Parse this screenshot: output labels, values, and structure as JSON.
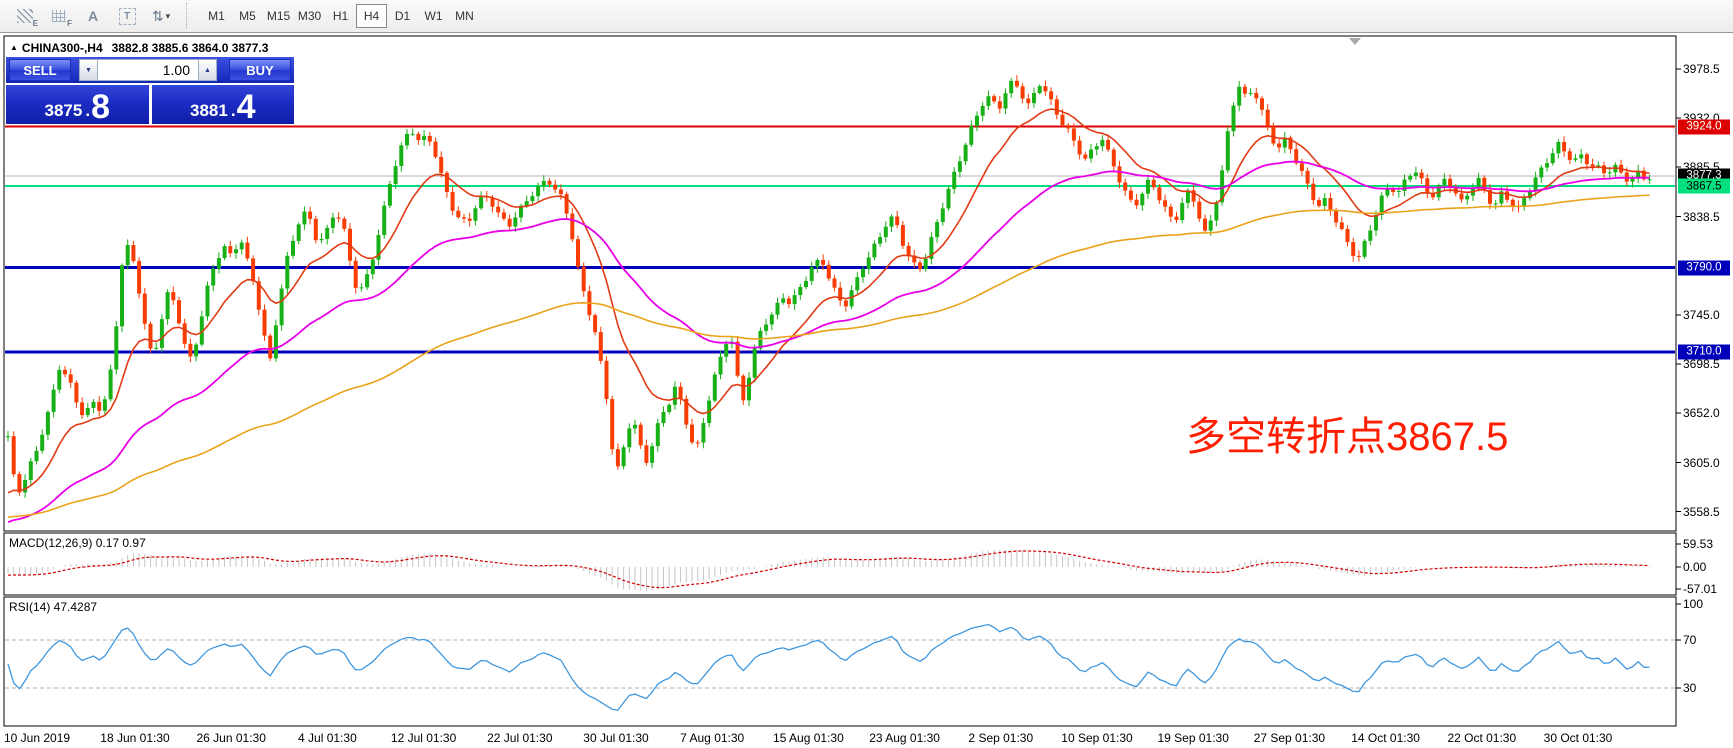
{
  "toolbar": {
    "tools": [
      {
        "name": "equidistant-channel-tool",
        "glyph": "E"
      },
      {
        "name": "fibonacci-tool",
        "glyph": "F"
      },
      {
        "name": "text-tool",
        "glyph": "A"
      },
      {
        "name": "text-label-tool",
        "glyph": "T"
      },
      {
        "name": "arrow-tools",
        "glyph": "⇅"
      }
    ],
    "caret": "▾",
    "timeframes": [
      "M1",
      "M5",
      "M15",
      "M30",
      "H1",
      "H4",
      "D1",
      "W1",
      "MN"
    ],
    "active_timeframe": "H4"
  },
  "glyphs": {
    "marker": "▲",
    "up": "▲",
    "down": "▼"
  },
  "symbol_bar": {
    "symbol": "CHINA300-,H4",
    "ohlc": "3882.8 3885.6 3864.0 3877.3"
  },
  "trade_panel": {
    "sell_label": "SELL",
    "buy_label": "BUY",
    "volume": "1.00",
    "sell_main": "3875",
    "sell_dot": ".",
    "sell_big": "8",
    "buy_main": "3881",
    "buy_dot": ".",
    "buy_big": "4"
  },
  "annotation": {
    "text": "多空转折点3867.5",
    "color": "#ff1e00"
  },
  "chart_data": {
    "type": "candlestick",
    "symbol": "CHINA300-",
    "timeframe": "H4",
    "current_bar": {
      "open": 3882.8,
      "high": 3885.6,
      "low": 3864.0,
      "close": 3877.3
    },
    "price_axis": {
      "min": 3540,
      "max": 4010,
      "ticks": [
        {
          "label": "3978.5",
          "price": 3978.5
        },
        {
          "label": "3932.0",
          "price": 3932.0
        },
        {
          "label": "3885.5",
          "price": 3885.5
        },
        {
          "label": "3838.5",
          "price": 3838.5
        },
        {
          "label": "3745.0",
          "price": 3745.0
        },
        {
          "label": "3698.5",
          "price": 3698.5
        },
        {
          "label": "3652.0",
          "price": 3652.0
        },
        {
          "label": "3605.0",
          "price": 3605.0
        },
        {
          "label": "3558.5",
          "price": 3558.5
        }
      ],
      "badges": [
        {
          "label": "3924.0",
          "price": 3924.0,
          "bg": "#dd0000",
          "fg": "#ffffff"
        },
        {
          "label": "3877.3",
          "price": 3877.3,
          "bg": "#000000",
          "fg": "#ffffff"
        },
        {
          "label": "3867.5",
          "price": 3867.5,
          "bg": "#00e07e",
          "fg": "#000000"
        },
        {
          "label": "3790.0",
          "price": 3790.0,
          "bg": "#0000bb",
          "fg": "#ffffff"
        },
        {
          "label": "3710.0",
          "price": 3710.0,
          "bg": "#0000bb",
          "fg": "#ffffff"
        }
      ]
    },
    "levels": [
      {
        "price": 3924.0,
        "color": "#dd0000",
        "width": 2
      },
      {
        "price": 3877.3,
        "color": "#b4b4b4",
        "width": 1
      },
      {
        "price": 3867.5,
        "color": "#00e07e",
        "width": 2
      },
      {
        "price": 3790.0,
        "color": "#0000bb",
        "width": 3
      },
      {
        "price": 3710.0,
        "color": "#0000bb",
        "width": 3
      }
    ],
    "candle_colors": {
      "up": "#17b117",
      "down": "#f83c02"
    },
    "moving_averages": [
      {
        "name": "fast-ma",
        "period": 14,
        "seed": 3568,
        "color": "#e23a14",
        "width": 1.6
      },
      {
        "name": "medium-ma",
        "period": 48,
        "seed": 3545,
        "color": "#e800e8",
        "width": 1.8
      },
      {
        "name": "slow-ma",
        "period": 130,
        "seed": 3552,
        "color": "#eaa21a",
        "width": 1.6
      }
    ],
    "close_path": [
      [
        8,
        3630
      ],
      [
        14,
        3588
      ],
      [
        20,
        3575
      ],
      [
        28,
        3596
      ],
      [
        36,
        3612
      ],
      [
        44,
        3640
      ],
      [
        52,
        3666
      ],
      [
        60,
        3700
      ],
      [
        68,
        3688
      ],
      [
        76,
        3664
      ],
      [
        84,
        3650
      ],
      [
        92,
        3660
      ],
      [
        100,
        3654
      ],
      [
        108,
        3670
      ],
      [
        115,
        3720
      ],
      [
        122,
        3795
      ],
      [
        129,
        3814
      ],
      [
        137,
        3782
      ],
      [
        145,
        3738
      ],
      [
        153,
        3700
      ],
      [
        161,
        3740
      ],
      [
        169,
        3768
      ],
      [
        177,
        3746
      ],
      [
        185,
        3714
      ],
      [
        192,
        3698
      ],
      [
        200,
        3738
      ],
      [
        208,
        3774
      ],
      [
        216,
        3800
      ],
      [
        224,
        3812
      ],
      [
        232,
        3800
      ],
      [
        240,
        3820
      ],
      [
        248,
        3792
      ],
      [
        256,
        3766
      ],
      [
        263,
        3728
      ],
      [
        270,
        3700
      ],
      [
        278,
        3752
      ],
      [
        286,
        3796
      ],
      [
        294,
        3822
      ],
      [
        302,
        3845
      ],
      [
        310,
        3836
      ],
      [
        318,
        3812
      ],
      [
        326,
        3820
      ],
      [
        334,
        3840
      ],
      [
        342,
        3834
      ],
      [
        350,
        3796
      ],
      [
        358,
        3766
      ],
      [
        366,
        3780
      ],
      [
        374,
        3806
      ],
      [
        382,
        3838
      ],
      [
        390,
        3870
      ],
      [
        398,
        3896
      ],
      [
        406,
        3912
      ],
      [
        413,
        3918
      ],
      [
        420,
        3908
      ],
      [
        428,
        3915
      ],
      [
        436,
        3898
      ],
      [
        444,
        3870
      ],
      [
        452,
        3850
      ],
      [
        460,
        3836
      ],
      [
        468,
        3832
      ],
      [
        476,
        3848
      ],
      [
        484,
        3856
      ],
      [
        492,
        3850
      ],
      [
        500,
        3838
      ],
      [
        508,
        3830
      ],
      [
        516,
        3842
      ],
      [
        524,
        3852
      ],
      [
        532,
        3862
      ],
      [
        540,
        3868
      ],
      [
        548,
        3872
      ],
      [
        556,
        3862
      ],
      [
        564,
        3850
      ],
      [
        572,
        3820
      ],
      [
        580,
        3778
      ],
      [
        588,
        3754
      ],
      [
        596,
        3728
      ],
      [
        602,
        3694
      ],
      [
        608,
        3660
      ],
      [
        614,
        3604
      ],
      [
        620,
        3596
      ],
      [
        626,
        3632
      ],
      [
        633,
        3646
      ],
      [
        640,
        3618
      ],
      [
        647,
        3604
      ],
      [
        654,
        3628
      ],
      [
        661,
        3650
      ],
      [
        668,
        3662
      ],
      [
        675,
        3678
      ],
      [
        682,
        3662
      ],
      [
        689,
        3634
      ],
      [
        696,
        3614
      ],
      [
        703,
        3640
      ],
      [
        710,
        3668
      ],
      [
        717,
        3692
      ],
      [
        724,
        3712
      ],
      [
        730,
        3732
      ],
      [
        736,
        3694
      ],
      [
        742,
        3662
      ],
      [
        749,
        3690
      ],
      [
        756,
        3718
      ],
      [
        763,
        3738
      ],
      [
        770,
        3742
      ],
      [
        777,
        3752
      ],
      [
        784,
        3762
      ],
      [
        791,
        3752
      ],
      [
        798,
        3766
      ],
      [
        806,
        3780
      ],
      [
        814,
        3794
      ],
      [
        822,
        3800
      ],
      [
        830,
        3780
      ],
      [
        838,
        3762
      ],
      [
        846,
        3756
      ],
      [
        854,
        3770
      ],
      [
        862,
        3788
      ],
      [
        870,
        3800
      ],
      [
        878,
        3815
      ],
      [
        886,
        3832
      ],
      [
        894,
        3840
      ],
      [
        902,
        3818
      ],
      [
        910,
        3800
      ],
      [
        918,
        3788
      ],
      [
        926,
        3800
      ],
      [
        934,
        3822
      ],
      [
        942,
        3845
      ],
      [
        950,
        3866
      ],
      [
        958,
        3888
      ],
      [
        966,
        3910
      ],
      [
        974,
        3930
      ],
      [
        982,
        3948
      ],
      [
        990,
        3954
      ],
      [
        998,
        3940
      ],
      [
        1006,
        3956
      ],
      [
        1014,
        3966
      ],
      [
        1022,
        3952
      ],
      [
        1030,
        3940
      ],
      [
        1038,
        3968
      ],
      [
        1046,
        3958
      ],
      [
        1054,
        3944
      ],
      [
        1062,
        3930
      ],
      [
        1070,
        3918
      ],
      [
        1078,
        3902
      ],
      [
        1086,
        3890
      ],
      [
        1094,
        3902
      ],
      [
        1102,
        3912
      ],
      [
        1110,
        3894
      ],
      [
        1118,
        3878
      ],
      [
        1126,
        3862
      ],
      [
        1134,
        3850
      ],
      [
        1142,
        3862
      ],
      [
        1150,
        3874
      ],
      [
        1158,
        3858
      ],
      [
        1166,
        3842
      ],
      [
        1174,
        3830
      ],
      [
        1182,
        3850
      ],
      [
        1190,
        3864
      ],
      [
        1198,
        3844
      ],
      [
        1206,
        3822
      ],
      [
        1214,
        3846
      ],
      [
        1222,
        3882
      ],
      [
        1230,
        3930
      ],
      [
        1238,
        3964
      ],
      [
        1246,
        3948
      ],
      [
        1254,
        3958
      ],
      [
        1262,
        3938
      ],
      [
        1270,
        3916
      ],
      [
        1278,
        3906
      ],
      [
        1286,
        3914
      ],
      [
        1294,
        3898
      ],
      [
        1302,
        3880
      ],
      [
        1310,
        3862
      ],
      [
        1318,
        3846
      ],
      [
        1326,
        3852
      ],
      [
        1334,
        3838
      ],
      [
        1342,
        3824
      ],
      [
        1350,
        3810
      ],
      [
        1358,
        3800
      ],
      [
        1366,
        3818
      ],
      [
        1374,
        3838
      ],
      [
        1382,
        3856
      ],
      [
        1390,
        3866
      ],
      [
        1398,
        3858
      ],
      [
        1406,
        3872
      ],
      [
        1414,
        3884
      ],
      [
        1422,
        3872
      ],
      [
        1430,
        3858
      ],
      [
        1438,
        3868
      ],
      [
        1446,
        3876
      ],
      [
        1454,
        3864
      ],
      [
        1462,
        3850
      ],
      [
        1470,
        3862
      ],
      [
        1478,
        3872
      ],
      [
        1486,
        3858
      ],
      [
        1494,
        3848
      ],
      [
        1502,
        3862
      ],
      [
        1510,
        3856
      ],
      [
        1518,
        3846
      ],
      [
        1526,
        3860
      ],
      [
        1534,
        3872
      ],
      [
        1542,
        3882
      ],
      [
        1550,
        3894
      ],
      [
        1558,
        3905
      ],
      [
        1566,
        3898
      ],
      [
        1574,
        3892
      ],
      [
        1582,
        3898
      ],
      [
        1590,
        3890
      ],
      [
        1598,
        3886
      ],
      [
        1606,
        3880
      ],
      [
        1614,
        3886
      ],
      [
        1622,
        3876
      ],
      [
        1630,
        3870
      ],
      [
        1638,
        3878
      ],
      [
        1646,
        3874
      ],
      [
        1650,
        3877
      ]
    ],
    "macd": {
      "label": "MACD(12,26,9) 0.17 0.97",
      "fast": 12,
      "slow": 26,
      "signal": 9,
      "main_value": 0.17,
      "signal_value": 0.97,
      "axis_ticks": [
        {
          "label": "59.53",
          "value": 59.53
        },
        {
          "label": "0.00",
          "value": 0.0
        },
        {
          "label": "-57.01",
          "value": -57.01
        }
      ],
      "histogram_color": "#c4c4c4",
      "signal_color": "#d40000"
    },
    "rsi": {
      "label": "RSI(14) 47.4287",
      "period": 14,
      "value": 47.4287,
      "axis_ticks": [
        {
          "label": "100",
          "value": 100
        },
        {
          "label": "70",
          "value": 70
        },
        {
          "label": "30",
          "value": 30
        }
      ],
      "dashed_levels": [
        70,
        30
      ],
      "line_color": "#3f97de"
    },
    "time_labels": [
      "10 Jun 2019",
      "18 Jun 01:30",
      "26 Jun 01:30",
      "4 Jul 01:30",
      "12 Jul 01:30",
      "22 Jul 01:30",
      "30 Jul 01:30",
      "7 Aug 01:30",
      "15 Aug 01:30",
      "23 Aug 01:30",
      "2 Sep 01:30",
      "10 Sep 01:30",
      "19 Sep 01:30",
      "27 Sep 01:30",
      "14 Oct 01:30",
      "22 Oct 01:30",
      "30 Oct 01:30"
    ]
  }
}
